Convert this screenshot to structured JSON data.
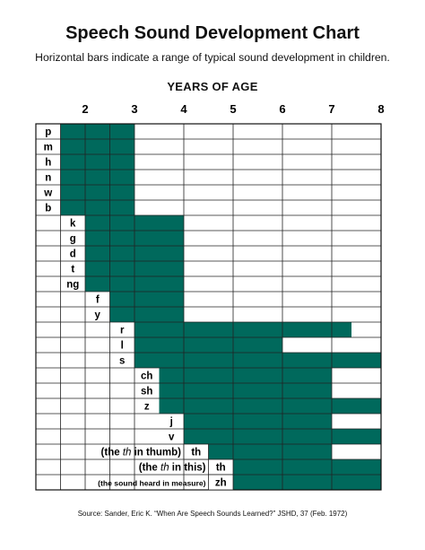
{
  "chart_data": {
    "type": "bar",
    "title": "Speech Sound Development Chart",
    "subtitle": "Horizontal bars indicate a range of typical sound development in children.",
    "xlabel": "YEARS OF AGE",
    "source": "Source: Sander, Eric K. “When Are Speech Sounds Learned?” JSHD, 37 (Feb. 1972)",
    "xlim": [
      1,
      8
    ],
    "x_ticks": [
      2,
      3,
      4,
      5,
      6,
      7,
      8
    ],
    "grid": true,
    "bar_color": "#00695c",
    "rows": [
      {
        "label": "p",
        "start": 1.5,
        "end": 3
      },
      {
        "label": "m",
        "start": 1.5,
        "end": 3
      },
      {
        "label": "h",
        "start": 1.5,
        "end": 3
      },
      {
        "label": "n",
        "start": 1.5,
        "end": 3
      },
      {
        "label": "w",
        "start": 1.5,
        "end": 3
      },
      {
        "label": "b",
        "start": 1.5,
        "end": 3
      },
      {
        "label": "k",
        "start": 2,
        "end": 4
      },
      {
        "label": "g",
        "start": 2,
        "end": 4
      },
      {
        "label": "d",
        "start": 2,
        "end": 4
      },
      {
        "label": "t",
        "start": 2,
        "end": 4
      },
      {
        "label": "ng",
        "start": 2,
        "end": 4
      },
      {
        "label": "f",
        "start": 2.5,
        "end": 4
      },
      {
        "label": "y",
        "start": 2.5,
        "end": 4
      },
      {
        "label": "r",
        "start": 3,
        "end": 7.4
      },
      {
        "label": "l",
        "start": 3,
        "end": 6
      },
      {
        "label": "s",
        "start": 3,
        "end": 8
      },
      {
        "label": "ch",
        "start": 3.5,
        "end": 7
      },
      {
        "label": "sh",
        "start": 3.5,
        "end": 7
      },
      {
        "label": "z",
        "start": 3.5,
        "end": 8
      },
      {
        "label": "j",
        "start": 4,
        "end": 7
      },
      {
        "label": "v",
        "start": 4,
        "end": 8
      },
      {
        "label": "th",
        "prefix": "(the ",
        "italic": "th",
        "suffix": " in thumb)",
        "start": 4.5,
        "end": 7
      },
      {
        "label": "th",
        "prefix": "(the ",
        "italic": "th",
        "suffix": " in this)",
        "start": 5,
        "end": 8
      },
      {
        "label": "zh",
        "prefix": "(the sound heard in measure)",
        "start": 5,
        "end": 8
      }
    ]
  }
}
